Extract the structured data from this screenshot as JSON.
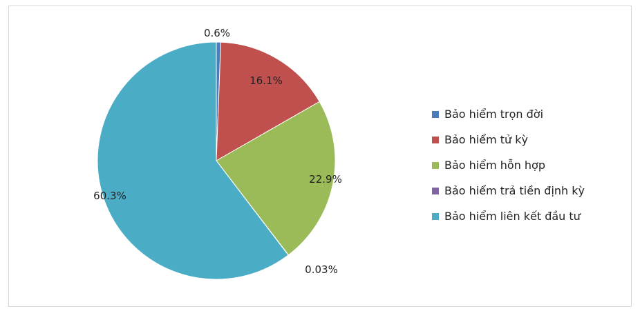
{
  "chart_data": {
    "type": "pie",
    "title": "",
    "slices": [
      {
        "label": "Bảo hiểm trọn đời",
        "value": 0.6,
        "display": "0.6%",
        "color": "#4a7ebb"
      },
      {
        "label": "Bảo hiểm tử kỳ",
        "value": 16.1,
        "display": "16.1%",
        "color": "#c0504d"
      },
      {
        "label": "Bảo hiểm hỗn hợp",
        "value": 22.9,
        "display": "22.9%",
        "color": "#9bbb59"
      },
      {
        "label": "Bảo hiểm trả tiền định kỳ",
        "value": 0.03,
        "display": "0.03%",
        "color": "#8064a2"
      },
      {
        "label": "Bảo hiểm liên kết đầu tư",
        "value": 60.3,
        "display": "60.3%",
        "color": "#4bacc6"
      }
    ],
    "legend_position": "right"
  }
}
